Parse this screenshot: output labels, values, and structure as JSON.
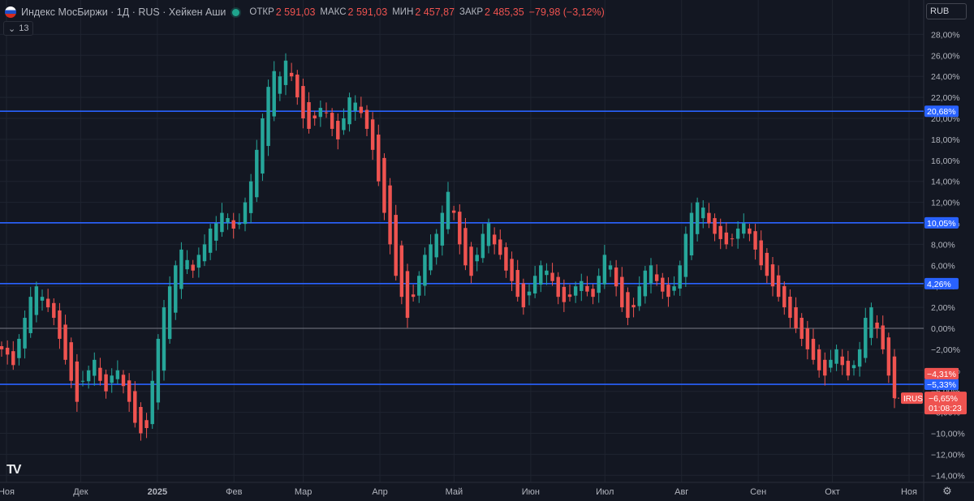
{
  "header": {
    "symbol": "Индекс МосБиржи · 1Д · RUS · Хейкен Аши",
    "open_label": "ОТКР",
    "open": "2 591,03",
    "high_label": "МАКС",
    "high": "2 591,03",
    "low_label": "МИН",
    "low": "2 457,87",
    "close_label": "ЗАКР",
    "close": "2 485,35",
    "change": "−79,98 (−3,12%)"
  },
  "indicator_count": "13",
  "currency": "RUB",
  "logo": "TV",
  "colors": {
    "background": "#131722",
    "up": "#26a69a",
    "down": "#ef5350",
    "level_line": "#2962ff",
    "grid": "#1f2430"
  },
  "chart_data": {
    "type": "candlestick",
    "chart_style": "Heikin Ashi",
    "y_unit": "percent",
    "ylim": [
      -15,
      29
    ],
    "y_ticks": [
      "28,00%",
      "26,00%",
      "24,00%",
      "22,00%",
      "20,00%",
      "18,00%",
      "16,00%",
      "14,00%",
      "12,00%",
      "10,00%",
      "8,00%",
      "6,00%",
      "4,00%",
      "2,00%",
      "0,00%",
      "−2,00%",
      "−4,00%",
      "−6,00%",
      "−8,00%",
      "−10,00%",
      "−12,00%",
      "−14,00%"
    ],
    "y_tick_values": [
      28,
      26,
      24,
      22,
      20,
      18,
      16,
      14,
      12,
      10,
      8,
      6,
      4,
      2,
      0,
      -2,
      -4,
      -6,
      -8,
      -10,
      -12,
      -14
    ],
    "x_labels": [
      "Ноя",
      "Дек",
      "2025",
      "Фев",
      "Мар",
      "Апр",
      "Май",
      "Июн",
      "Июл",
      "Авг",
      "Сен",
      "Окт",
      "Ноя"
    ],
    "x_label_days": [
      0,
      30,
      61,
      92,
      120,
      151,
      181,
      212,
      242,
      273,
      304,
      334,
      365
    ],
    "x_range_days": [
      0,
      365
    ],
    "horizontal_levels": [
      {
        "value": 20.68,
        "label": "20,68%"
      },
      {
        "value": 10.05,
        "label": "10,05%"
      },
      {
        "value": 4.26,
        "label": "4,26%"
      },
      {
        "value": -5.33,
        "label": "−5,33%"
      }
    ],
    "zero_line": 0,
    "price_tags": [
      {
        "value": -4.31,
        "label": "−4,31%"
      },
      {
        "value": -6.65,
        "label": "−6,65%",
        "name": "IRUS",
        "timer": "01:08:23"
      }
    ],
    "series": [
      {
        "name": "IRUS",
        "closes": [
          -2.0,
          -2.5,
          -3.5,
          -1.0,
          1.0,
          3.0,
          4.0,
          3.0,
          2.0,
          1.0,
          -1.0,
          -3.0,
          -5.0,
          -7.0,
          -5.0,
          -4.0,
          -3.0,
          -5.0,
          -6.0,
          -4.5,
          -4.0,
          -5.5,
          -7.0,
          -9.0,
          -10.0,
          -9.5,
          -5.0,
          -1.0,
          2.0,
          4.0,
          6.0,
          7.5,
          6.5,
          5.5,
          7.0,
          8.0,
          9.5,
          10.0,
          11.0,
          10.5,
          9.5,
          10.0,
          12.0,
          14.0,
          17.0,
          20.0,
          23.0,
          24.5,
          24.0,
          25.5,
          24.0,
          22.0,
          20.0,
          19.0,
          20.0,
          21.0,
          20.5,
          19.0,
          18.0,
          20.0,
          22.0,
          21.5,
          20.5,
          19.0,
          17.0,
          14.0,
          11.0,
          8.0,
          5.0,
          3.0,
          1.0,
          3.0,
          5.0,
          7.0,
          8.0,
          9.0,
          11.0,
          13.0,
          11.0,
          8.0,
          6.0,
          5.0,
          7.0,
          9.0,
          10.0,
          8.0,
          7.0,
          5.5,
          4.5,
          3.0,
          2.0,
          3.5,
          5.0,
          6.0,
          5.5,
          4.5,
          3.0,
          2.5,
          3.0,
          4.0,
          4.5,
          3.5,
          3.0,
          5.0,
          7.0,
          6.0,
          4.0,
          2.0,
          1.0,
          2.0,
          4.0,
          5.5,
          6.0,
          4.5,
          3.5,
          3.0,
          4.0,
          6.0,
          9.0,
          11.0,
          12.0,
          11.5,
          10.0,
          9.0,
          8.5,
          8.0,
          8.5,
          9.5,
          10.0,
          9.0,
          7.5,
          6.0,
          5.0,
          4.0,
          3.0,
          2.0,
          1.0,
          0.0,
          -1.0,
          -2.0,
          -3.0,
          -4.0,
          -4.5,
          -3.0,
          -2.0,
          -3.5,
          -4.5,
          -3.5,
          -2.0,
          1.0,
          2.0,
          0.0,
          -2.0,
          -4.5,
          -6.65
        ]
      }
    ]
  }
}
